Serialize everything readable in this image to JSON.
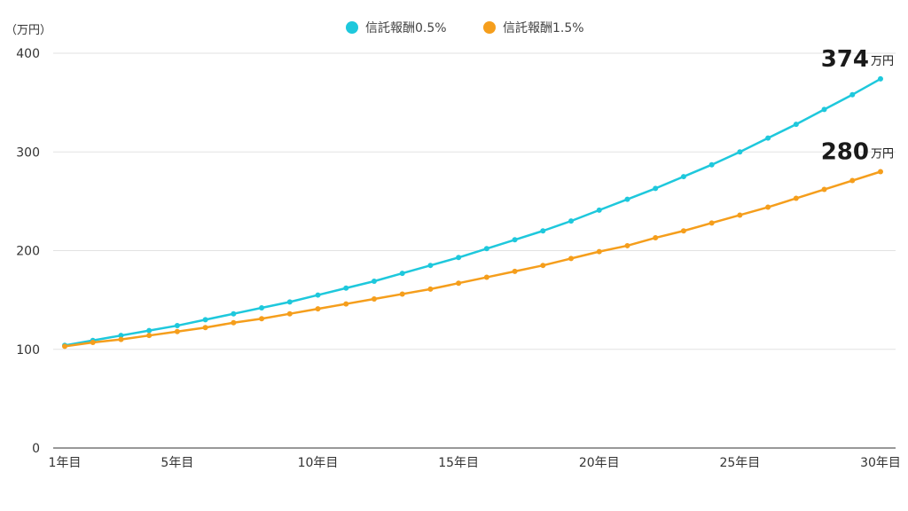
{
  "chart_data": {
    "type": "line",
    "ylabel": "（万円）",
    "ylim": [
      0,
      400
    ],
    "yticks": [
      0,
      100,
      200,
      300,
      400
    ],
    "grid": true,
    "legend_position": "top-center",
    "x": [
      1,
      2,
      3,
      4,
      5,
      6,
      7,
      8,
      9,
      10,
      11,
      12,
      13,
      14,
      15,
      16,
      17,
      18,
      19,
      20,
      21,
      22,
      23,
      24,
      25,
      26,
      27,
      28,
      29,
      30
    ],
    "xticks": [
      {
        "x": 1,
        "label": "1年目"
      },
      {
        "x": 5,
        "label": "5年目"
      },
      {
        "x": 10,
        "label": "10年目"
      },
      {
        "x": 15,
        "label": "15年目"
      },
      {
        "x": 20,
        "label": "20年目"
      },
      {
        "x": 25,
        "label": "25年目"
      },
      {
        "x": 30,
        "label": "30年目"
      }
    ],
    "series": [
      {
        "name": "信託報酬0.5%",
        "color": "#1ec8dc",
        "values": [
          104,
          109,
          114,
          119,
          124,
          130,
          136,
          142,
          148,
          155,
          162,
          169,
          177,
          185,
          193,
          202,
          211,
          220,
          230,
          241,
          252,
          263,
          275,
          287,
          300,
          314,
          328,
          343,
          358,
          374
        ],
        "end_label": {
          "value": "374",
          "unit": "万円"
        }
      },
      {
        "name": "信託報酬1.5%",
        "color": "#f59e1c",
        "values": [
          103,
          107,
          110,
          114,
          118,
          122,
          127,
          131,
          136,
          141,
          146,
          151,
          156,
          161,
          167,
          173,
          179,
          185,
          192,
          199,
          205,
          213,
          220,
          228,
          236,
          244,
          253,
          262,
          271,
          280
        ],
        "end_label": {
          "value": "280",
          "unit": "万円"
        }
      }
    ]
  }
}
